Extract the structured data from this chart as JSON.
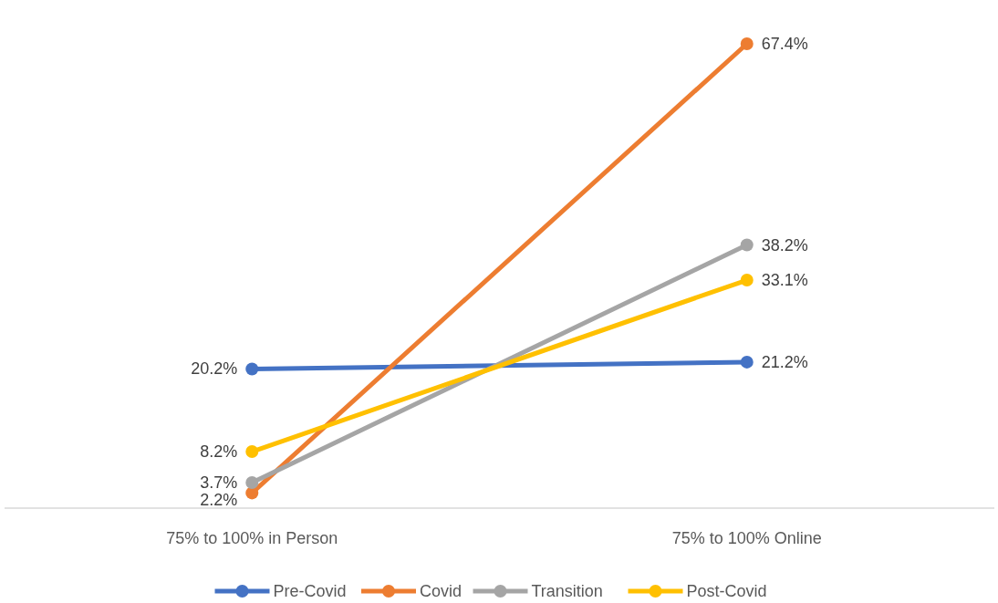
{
  "chart_data": {
    "type": "line",
    "categories": [
      "75% to 100% in Person",
      "75% to 100% Online"
    ],
    "series": [
      {
        "name": "Pre-Covid",
        "color": "#4472c4",
        "values": [
          20.2,
          21.2
        ],
        "value_labels": [
          "20.2%",
          "21.2%"
        ]
      },
      {
        "name": "Covid",
        "color": "#ed7d31",
        "values": [
          2.2,
          67.4
        ],
        "value_labels": [
          "2.2%",
          "67.4%"
        ]
      },
      {
        "name": "Transition",
        "color": "#a5a5a5",
        "values": [
          3.7,
          38.2
        ],
        "value_labels": [
          "3.7%",
          "38.2%"
        ]
      },
      {
        "name": "Post-Covid",
        "color": "#ffc000",
        "values": [
          8.2,
          33.1
        ],
        "value_labels": [
          "8.2%",
          "33.1%"
        ]
      }
    ],
    "marker": "circle",
    "legend": "bottom",
    "grid": false
  }
}
